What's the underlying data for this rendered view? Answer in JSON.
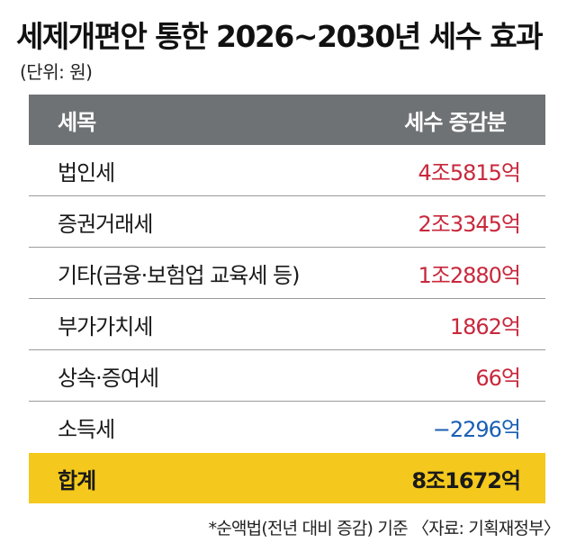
{
  "title": "세제개편안 통한 2026~2030년 세수 효과",
  "unit": "(단위: 원)",
  "footnote": "*순액법(전년 대비 증감) 기준 〈자료: 기획재정부〉",
  "chart_data": {
    "type": "table",
    "columns": [
      "세목",
      "세수 증감분"
    ],
    "rows": [
      {
        "label": "법인세",
        "value_text": "4조5815억",
        "value": 4581500000000
      },
      {
        "label": "증권거래세",
        "value_text": "2조3345억",
        "value": 2334500000000
      },
      {
        "label": "기타(금융·보험업 교육세 등)",
        "value_text": "1조2880억",
        "value": 1288000000000
      },
      {
        "label": "부가가치세",
        "value_text": "1862억",
        "value": 186200000000
      },
      {
        "label": "상속·증여세",
        "value_text": "66억",
        "value": 6600000000
      },
      {
        "label": "소득세",
        "value_text": "−2296억",
        "value": -229600000000
      }
    ],
    "total": {
      "label": "합계",
      "value_text": "8조1672억",
      "value": 8167200000000
    },
    "colors": {
      "header_bg": "#6f7275",
      "positive": "#c8283c",
      "negative": "#1a5fb4",
      "total_bg": "#f4c81c"
    }
  }
}
